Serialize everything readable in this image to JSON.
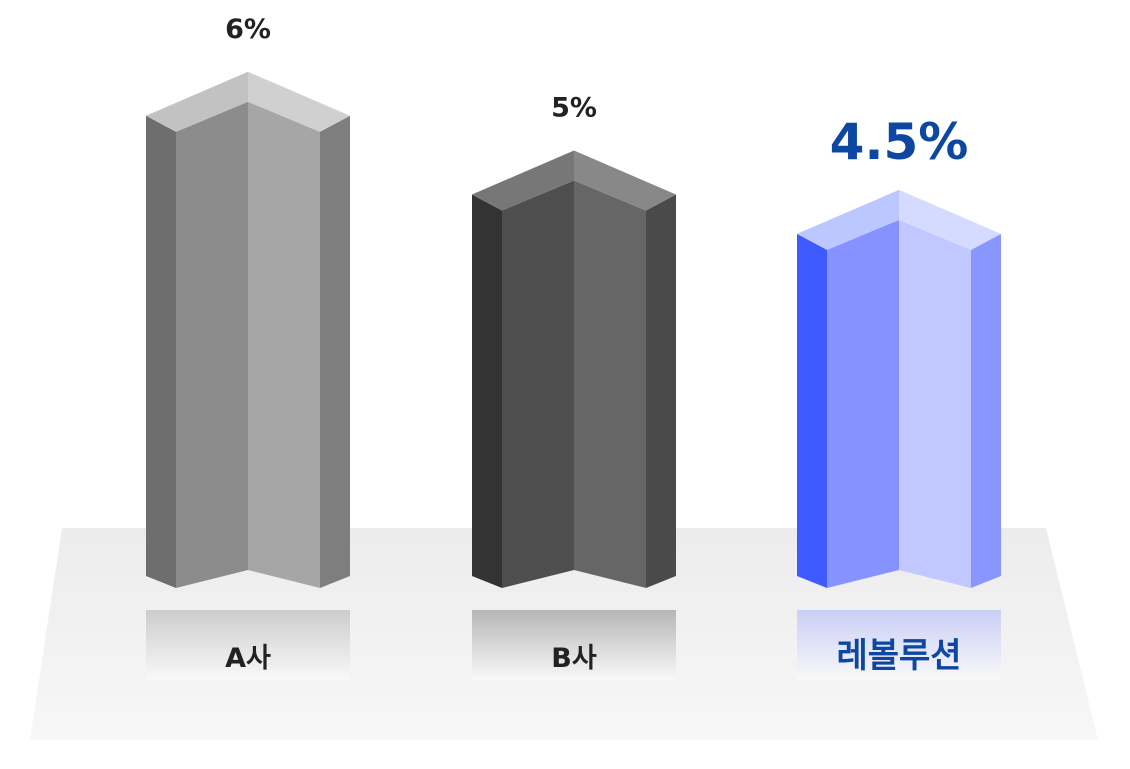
{
  "chart_data": {
    "type": "bar",
    "title": "",
    "xlabel": "",
    "ylabel": "",
    "categories": [
      "A사",
      "B사",
      "레볼루션"
    ],
    "values": [
      6,
      5,
      4.5
    ],
    "value_labels": [
      "6%",
      "5%",
      "4.5%"
    ],
    "unit": "%",
    "ylim": [
      0,
      6
    ],
    "grid": false,
    "legend": "none",
    "highlight_index": 2,
    "colors": {
      "bar_a": "#8a8a8a",
      "bar_b": "#505050",
      "bar_highlight": "#8c96ff",
      "highlight_text": "#0d47a1",
      "normal_text": "#222222",
      "floor": "#e6e6e6"
    }
  }
}
